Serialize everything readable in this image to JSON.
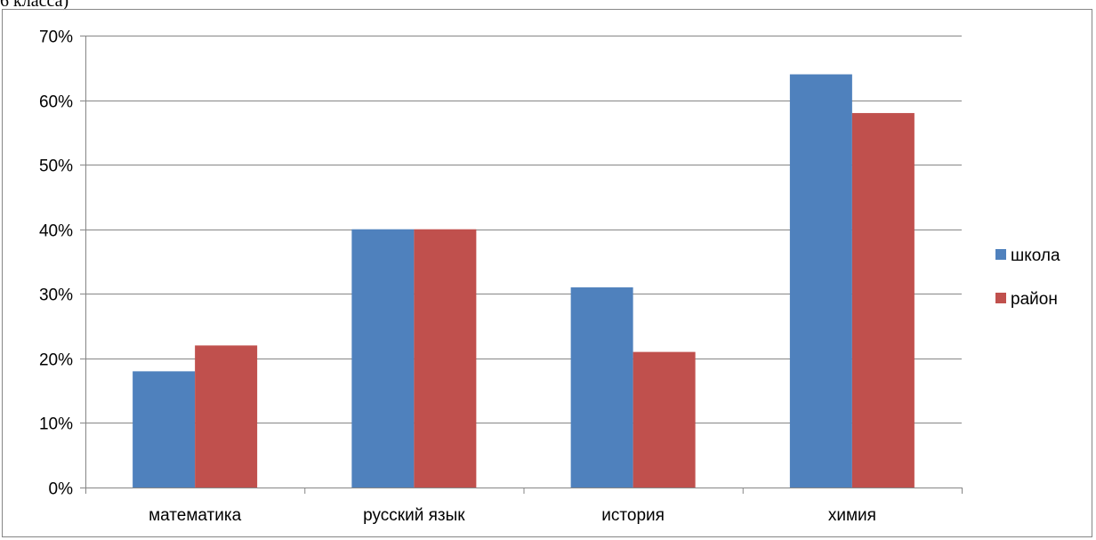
{
  "caption": "6 класса)",
  "chart_data": {
    "type": "bar",
    "categories": [
      "математика",
      "русский язык",
      "история",
      "химия"
    ],
    "series": [
      {
        "name": "школа",
        "values": [
          18,
          40,
          31,
          64
        ],
        "color": "#4F81BD"
      },
      {
        "name": "район",
        "values": [
          22,
          40,
          21,
          58
        ],
        "color": "#C0504D"
      }
    ],
    "ylim": [
      0,
      70
    ],
    "yticks": [
      "0%",
      "10%",
      "20%",
      "30%",
      "40%",
      "50%",
      "60%",
      "70%"
    ],
    "grid": true,
    "legend": "right",
    "title": "",
    "xlabel": "",
    "ylabel": ""
  }
}
